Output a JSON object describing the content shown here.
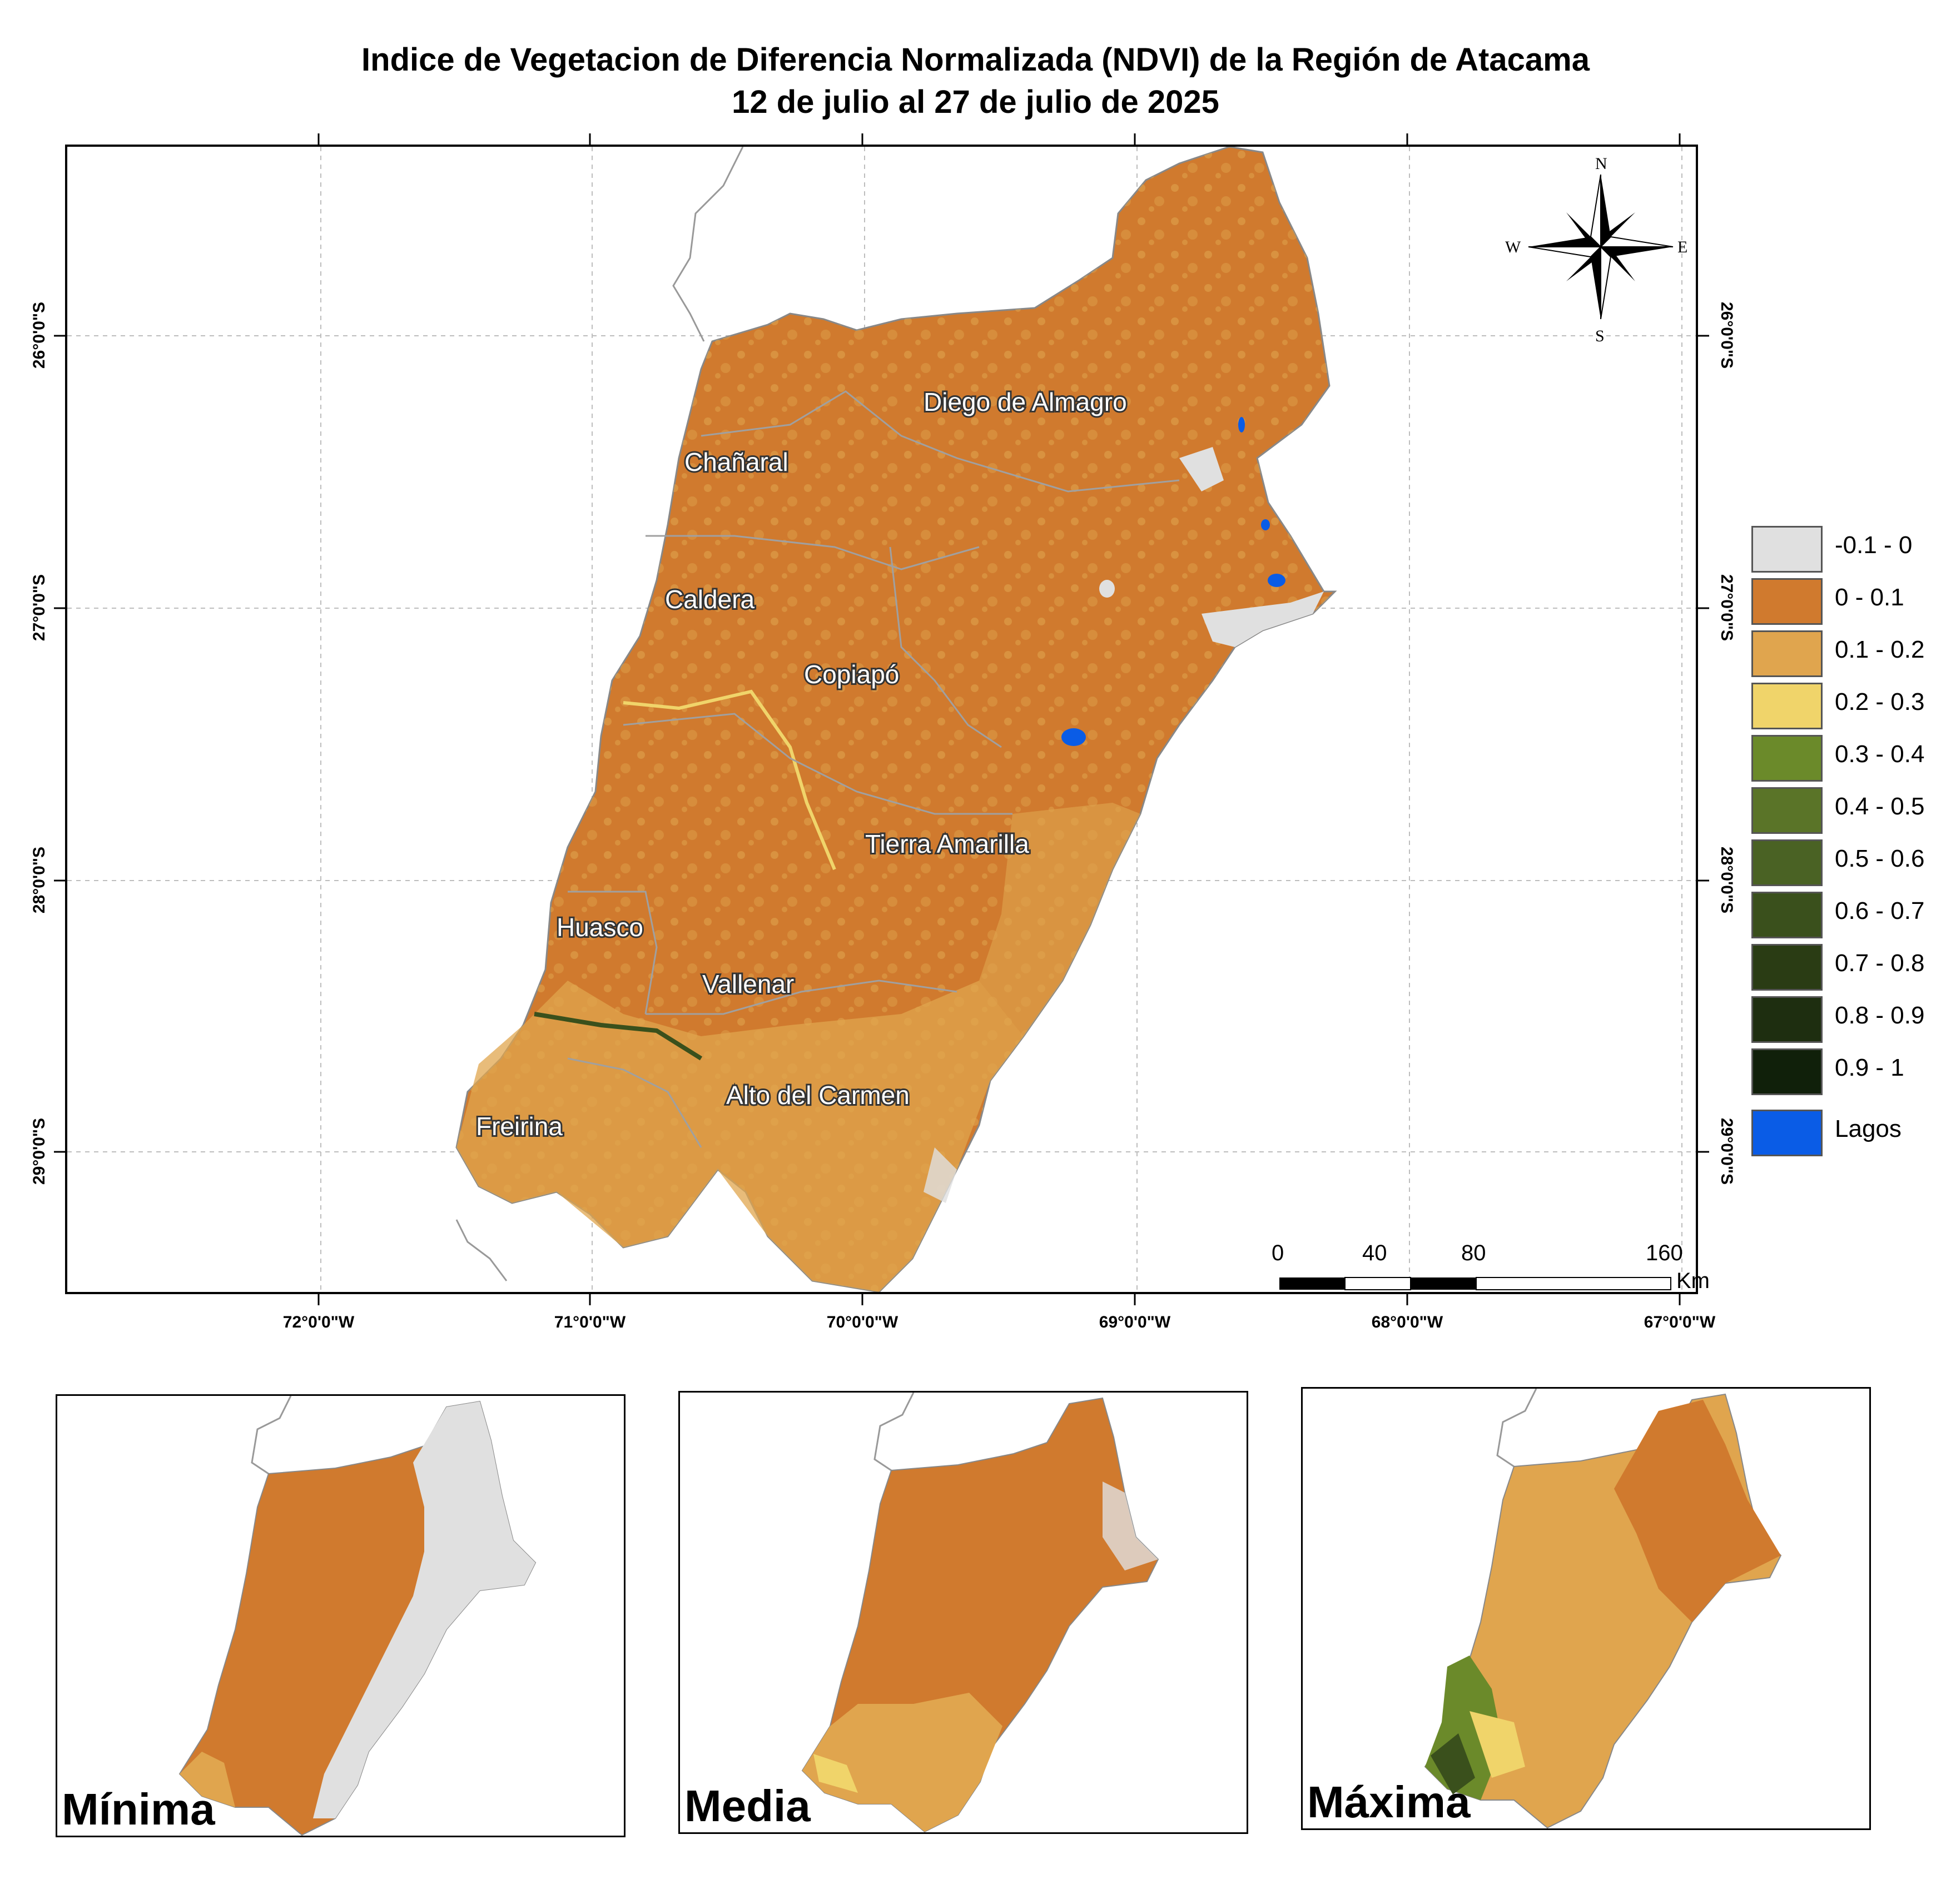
{
  "title": {
    "line1": "Indice de Vegetacion de Diferencia Normalizada (NDVI) de la Región de Atacama",
    "line2": "12 de julio al 27 de julio de 2025"
  },
  "map": {
    "lat_labels": [
      "26°0'0\"S",
      "27°0'0\"S",
      "28°0'0\"S",
      "29°0'0\"S"
    ],
    "lon_labels": [
      "72°0'0\"W",
      "71°0'0\"W",
      "70°0'0\"W",
      "69°0'0\"W",
      "68°0'0\"W",
      "67°0'0\"W"
    ],
    "communes": [
      "Diego de Almagro",
      "Chañaral",
      "Caldera",
      "Copiapó",
      "Tierra Amarilla",
      "Huasco",
      "Vallenar",
      "Alto del Carmen",
      "Freirina"
    ],
    "compass": {
      "n": "N",
      "s": "S",
      "e": "E",
      "w": "W"
    },
    "scale_bar": {
      "ticks": [
        "0",
        "40",
        "80",
        "160"
      ],
      "unit": "Km"
    }
  },
  "legend": [
    {
      "label": "-0.1 - 0",
      "color": "#e0e0e0"
    },
    {
      "label": "0 - 0.1",
      "color": "#d07a2e"
    },
    {
      "label": "0.1 - 0.2",
      "color": "#e0a54e"
    },
    {
      "label": "0.2 - 0.3",
      "color": "#f0d46a"
    },
    {
      "label": "0.3 - 0.4",
      "color": "#6b8a2a"
    },
    {
      "label": "0.4 - 0.5",
      "color": "#5a7428"
    },
    {
      "label": "0.5 - 0.6",
      "color": "#4a6224"
    },
    {
      "label": "0.6 - 0.7",
      "color": "#3a501c"
    },
    {
      "label": "0.7 - 0.8",
      "color": "#2a3c14"
    },
    {
      "label": "0.8 - 0.9",
      "color": "#1e2e10"
    },
    {
      "label": "0.9 - 1",
      "color": "#10200a"
    },
    {
      "label": "Lagos",
      "color": "#0a5ce6"
    }
  ],
  "insets": [
    {
      "label": "Mínima"
    },
    {
      "label": "Media"
    },
    {
      "label": "Máxima"
    }
  ]
}
